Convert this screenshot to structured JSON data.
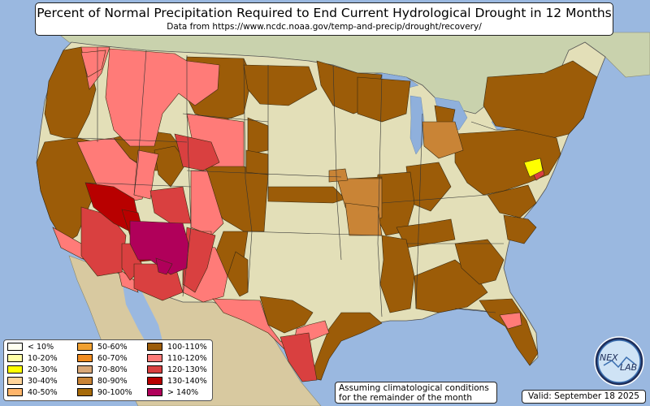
{
  "header": {
    "title": "Percent of Normal Precipitation Required to End Current Hydrological Drought in 12 Months",
    "subtitle": "Data from https://www.ncdc.noaa.gov/temp-and-precip/drought/recovery/"
  },
  "legend": {
    "items": [
      {
        "label": "< 10%",
        "color": "#fffff0"
      },
      {
        "label": "10-20%",
        "color": "#ffffa8"
      },
      {
        "label": "20-30%",
        "color": "#ffff00"
      },
      {
        "label": "30-40%",
        "color": "#ffd49a"
      },
      {
        "label": "40-50%",
        "color": "#ffb56b"
      },
      {
        "label": "50-60%",
        "color": "#f0a030"
      },
      {
        "label": "60-70%",
        "color": "#f08c20"
      },
      {
        "label": "70-80%",
        "color": "#d9a878"
      },
      {
        "label": "80-90%",
        "color": "#c98436"
      },
      {
        "label": "90-100%",
        "color": "#a66a0a"
      },
      {
        "label": "100-110%",
        "color": "#9c5c08"
      },
      {
        "label": "110-120%",
        "color": "#ff7b78"
      },
      {
        "label": "120-130%",
        "color": "#d94040"
      },
      {
        "label": "130-140%",
        "color": "#b80000"
      },
      {
        "label": "> 140%",
        "color": "#b0005a"
      }
    ]
  },
  "note": {
    "line1": "Assuming climatological conditions",
    "line2": "for the remainder of the month"
  },
  "footer": {
    "valid": "Valid: September 18 2025"
  },
  "logo": {
    "text_left": "NEX",
    "text_right": "LAB"
  },
  "colors": {
    "ocean": "#9ab8e0",
    "land_neutral": "#e3dfb8",
    "canada": "#c9d2ad",
    "mexico": "#d8c9a0",
    "lakes": "#8fb0dc",
    "pct_100_110": "#9c5c08",
    "pct_110_120": "#ff7b78",
    "pct_120_130": "#d94040",
    "pct_130_140": "#b80000",
    "pct_gt140": "#b0005a",
    "pct_80_90": "#c98436",
    "pct_20_30": "#ffff00"
  }
}
